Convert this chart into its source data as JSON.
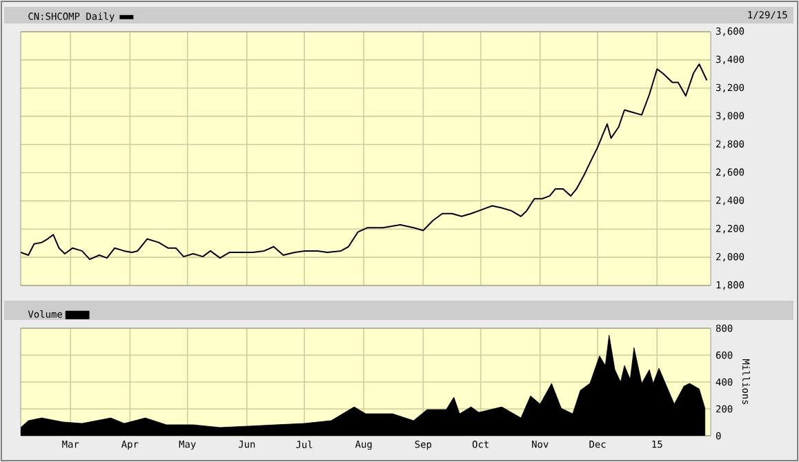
{
  "chart_data": [
    {
      "type": "line",
      "xlim": [
        "2014-02-03",
        "2015-01-29"
      ],
      "ylim": [
        1800,
        3600
      ],
      "xticks": [
        {
          "value": "2014-03-01",
          "label": null
        },
        {
          "value": "2014-04-01",
          "label": null
        },
        {
          "value": "2014-05-01",
          "label": null
        },
        {
          "value": "2014-06-01",
          "label": null
        },
        {
          "value": "2014-07-01",
          "label": null
        },
        {
          "value": "2014-08-01",
          "label": null
        },
        {
          "value": "2014-09-01",
          "label": null
        },
        {
          "value": "2014-10-01",
          "label": null
        },
        {
          "value": "2014-11-01",
          "label": null
        },
        {
          "value": "2014-12-01",
          "label": null
        },
        {
          "value": "2015-01-01",
          "label": null
        }
      ],
      "yticks": [
        {
          "value": 1800,
          "label": "1,800"
        },
        {
          "value": 2000,
          "label": "2,000"
        },
        {
          "value": 2200,
          "label": "2,200"
        },
        {
          "value": 2400,
          "label": "2,400"
        },
        {
          "value": 2600,
          "label": "2,600"
        },
        {
          "value": 2800,
          "label": "2,800"
        },
        {
          "value": 3000,
          "label": "3,000"
        },
        {
          "value": 3200,
          "label": "3,200"
        },
        {
          "value": 3400,
          "label": "3,400"
        },
        {
          "value": 3600,
          "label": "3,600"
        }
      ],
      "tick_labels": "y",
      "grid": true,
      "legend": "top left",
      "marker": "none",
      "line_style": "solid",
      "annotations": [
        "1/29/15"
      ],
      "series": [
        {
          "name": "CN:SHCOMP Daily",
          "color": "#000000",
          "x": [
            "2014-02-03",
            "2014-02-07",
            "2014-02-10",
            "2014-02-14",
            "2014-02-17",
            "2014-02-20",
            "2014-02-23",
            "2014-02-26",
            "2014-03-02",
            "2014-03-07",
            "2014-03-11",
            "2014-03-16",
            "2014-03-20",
            "2014-03-24",
            "2014-03-29",
            "2014-04-02",
            "2014-04-05",
            "2014-04-10",
            "2014-04-16",
            "2014-04-21",
            "2014-04-25",
            "2014-04-29",
            "2014-05-04",
            "2014-05-09",
            "2014-05-13",
            "2014-05-18",
            "2014-05-23",
            "2014-05-31",
            "2014-06-04",
            "2014-06-10",
            "2014-06-15",
            "2014-06-20",
            "2014-06-26",
            "2014-07-01",
            "2014-07-08",
            "2014-07-13",
            "2014-07-20",
            "2014-07-24",
            "2014-07-29",
            "2014-08-03",
            "2014-08-11",
            "2014-08-20",
            "2014-08-27",
            "2014-09-01",
            "2014-09-06",
            "2014-09-11",
            "2014-09-16",
            "2014-09-21",
            "2014-09-26",
            "2014-10-02",
            "2014-10-07",
            "2014-10-12",
            "2014-10-17",
            "2014-10-22",
            "2014-10-25",
            "2014-10-29",
            "2014-11-02",
            "2014-11-06",
            "2014-11-09",
            "2014-11-13",
            "2014-11-17",
            "2014-11-20",
            "2014-11-24",
            "2014-11-27",
            "2014-12-01",
            "2014-12-04",
            "2014-12-06",
            "2014-12-08",
            "2014-12-12",
            "2014-12-15",
            "2014-12-20",
            "2014-12-24",
            "2014-12-28",
            "2015-01-01",
            "2015-01-04",
            "2015-01-09",
            "2015-01-12",
            "2015-01-16",
            "2015-01-20",
            "2015-01-23",
            "2015-01-27"
          ],
          "values": [
            2035,
            2015,
            2095,
            2105,
            2130,
            2160,
            2065,
            2025,
            2065,
            2045,
            1985,
            2015,
            1995,
            2065,
            2045,
            2035,
            2045,
            2130,
            2105,
            2065,
            2065,
            2005,
            2025,
            2005,
            2045,
            1995,
            2035,
            2035,
            2035,
            2045,
            2075,
            2015,
            2035,
            2045,
            2045,
            2035,
            2045,
            2075,
            2180,
            2210,
            2210,
            2230,
            2210,
            2190,
            2260,
            2310,
            2310,
            2290,
            2310,
            2340,
            2365,
            2350,
            2330,
            2290,
            2330,
            2415,
            2415,
            2435,
            2485,
            2485,
            2435,
            2485,
            2585,
            2670,
            2780,
            2880,
            2945,
            2845,
            2925,
            3045,
            3025,
            3010,
            3155,
            3335,
            3305,
            3240,
            3240,
            3145,
            3305,
            3370,
            3255
          ]
        }
      ]
    },
    {
      "type": "area",
      "xlim": [
        "2014-02-03",
        "2015-01-29"
      ],
      "ylim": [
        0,
        800
      ],
      "xticks": [
        {
          "value": "2014-03-01",
          "label": "Mar"
        },
        {
          "value": "2014-04-01",
          "label": "Apr"
        },
        {
          "value": "2014-05-01",
          "label": "May"
        },
        {
          "value": "2014-06-01",
          "label": "Jun"
        },
        {
          "value": "2014-07-01",
          "label": "Jul"
        },
        {
          "value": "2014-08-01",
          "label": "Aug"
        },
        {
          "value": "2014-09-01",
          "label": "Sep"
        },
        {
          "value": "2014-10-01",
          "label": "Oct"
        },
        {
          "value": "2014-11-01",
          "label": "Nov"
        },
        {
          "value": "2014-12-01",
          "label": "Dec"
        },
        {
          "value": "2015-01-01",
          "label": "15"
        }
      ],
      "yticks": [
        0,
        200,
        400,
        600,
        800
      ],
      "ylabel": "Millions",
      "grid": true,
      "legend": "top left",
      "series": [
        {
          "name": "Volume",
          "color": "#000000",
          "x": [
            "2014-02-03",
            "2014-02-07",
            "2014-02-14",
            "2014-02-25",
            "2014-03-07",
            "2014-03-22",
            "2014-03-29",
            "2014-04-09",
            "2014-04-20",
            "2014-05-04",
            "2014-05-18",
            "2014-06-02",
            "2014-06-16",
            "2014-07-01",
            "2014-07-15",
            "2014-07-27",
            "2014-08-02",
            "2014-08-16",
            "2014-08-27",
            "2014-09-03",
            "2014-09-13",
            "2014-09-17",
            "2014-09-20",
            "2014-09-26",
            "2014-09-30",
            "2014-10-12",
            "2014-10-22",
            "2014-10-27",
            "2014-11-01",
            "2014-11-07",
            "2014-11-12",
            "2014-11-18",
            "2014-11-22",
            "2014-11-27",
            "2014-12-02",
            "2014-12-05",
            "2014-12-07",
            "2014-12-10",
            "2014-12-13",
            "2014-12-15",
            "2014-12-18",
            "2014-12-20",
            "2014-12-24",
            "2014-12-28",
            "2014-12-30",
            "2015-01-02",
            "2015-01-06",
            "2015-01-10",
            "2015-01-15",
            "2015-01-18",
            "2015-01-23",
            "2015-01-26"
          ],
          "values": [
            62,
            113,
            133,
            103,
            92,
            133,
            92,
            133,
            82,
            82,
            62,
            72,
            82,
            92,
            113,
            215,
            164,
            164,
            113,
            195,
            195,
            287,
            164,
            215,
            174,
            215,
            133,
            297,
            236,
            390,
            205,
            164,
            338,
            390,
            595,
            523,
            749,
            492,
            400,
            523,
            420,
            656,
            390,
            492,
            390,
            503,
            369,
            236,
            369,
            390,
            349,
            205
          ]
        }
      ]
    }
  ]
}
